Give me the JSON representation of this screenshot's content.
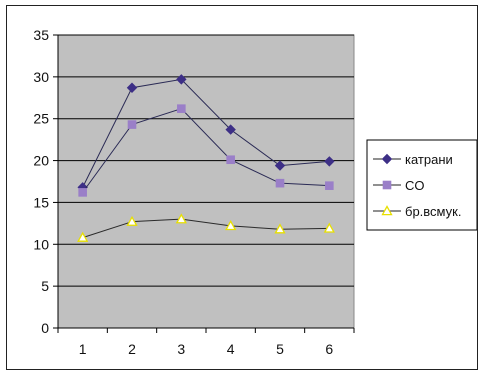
{
  "chart_data": {
    "type": "line",
    "x": [
      1,
      2,
      3,
      4,
      5,
      6
    ],
    "series": [
      {
        "name": "катрани",
        "values": [
          16.8,
          28.7,
          29.7,
          23.7,
          19.4,
          19.9
        ],
        "color": "#3d2f86",
        "marker": "diamond"
      },
      {
        "name": "CO",
        "values": [
          16.2,
          24.3,
          26.2,
          20.1,
          17.3,
          17.0
        ],
        "color": "#9a7fc8",
        "marker": "square"
      },
      {
        "name": "бр.всмук.",
        "values": [
          10.8,
          12.7,
          13.0,
          12.2,
          11.8,
          11.9
        ],
        "color": "#e8e000",
        "marker": "triangle"
      }
    ],
    "ylim": [
      0,
      35
    ],
    "yticks": [
      0,
      5,
      10,
      15,
      20,
      25,
      30,
      35
    ],
    "grid": true,
    "plot_background": "#c0c0c0",
    "legend_position": "right"
  }
}
